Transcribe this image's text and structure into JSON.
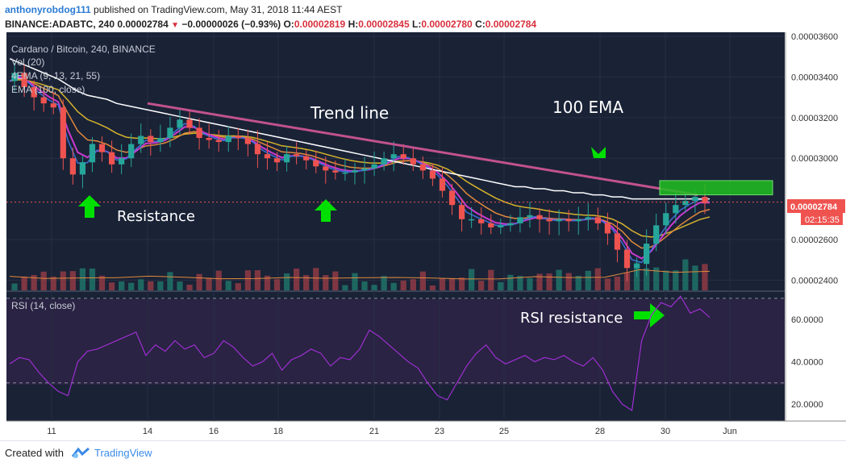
{
  "header": {
    "author": "anthonyrobdog111",
    "published": " published on TradingView.com, May 31, 2018 11:44 AEST",
    "symbol": "BINANCE:ADABTC, 240",
    "last": "0.00002784",
    "change": "−0.00000026 (−0.93%)",
    "o_label": "O:",
    "o": "0.00002819",
    "h_label": "H:",
    "h": "0.00002845",
    "l_label": "L:",
    "l": "0.00002780",
    "c_label": "C:",
    "c": "0.00002784"
  },
  "legend": {
    "title": "Cardano / Bitcoin, 240, BINANCE",
    "vol": "Vol (20)",
    "ema4": "4EMA (9, 13, 21, 55)",
    "ema100": "EMA (100, close)",
    "rsi": "RSI (14, close)"
  },
  "annotations": {
    "trend_line": "Trend line",
    "ema_100": "100 EMA",
    "resistance": "Resistance",
    "rsi_resistance": "RSI resistance"
  },
  "price_axis": {
    "labels": [
      "0.00003600",
      "0.00003400",
      "0.00003200",
      "0.00003000",
      "0.00002600",
      "0.00002400"
    ],
    "last_price_label": "0.00002784",
    "countdown": "02:15:35"
  },
  "rsi_axis": {
    "labels": [
      "60.0000",
      "40.0000",
      "20.0000"
    ]
  },
  "time_axis": {
    "labels": [
      "11",
      "14",
      "16",
      "18",
      "21",
      "23",
      "25",
      "28",
      "30",
      "Jun"
    ]
  },
  "footer": {
    "created": "Created with",
    "brand": "TradingView"
  },
  "colors": {
    "up": "#26a69a",
    "down": "#ef5350",
    "ema100": "#ffffff",
    "trend": "#c2528f",
    "ema9": "#3b6fd6",
    "ema13": "#c83ad0",
    "ema21": "#e08a3c",
    "ema55": "#d4b32c",
    "rsi_line": "#9c2fd1",
    "arrow": "#00e000",
    "box": "#20c020"
  },
  "chart_data": {
    "type": "candlestick",
    "title": "Cardano / Bitcoin, 240, BINANCE",
    "x_labels": [
      "11",
      "14",
      "16",
      "18",
      "21",
      "23",
      "25",
      "28",
      "30",
      "Jun"
    ],
    "ylim": [
      2.35e-05,
      3.62e-05
    ],
    "rsi_ylim": [
      12,
      73
    ],
    "price_path": [
      3.38e-05,
      3.42e-05,
      3.35e-05,
      3.3e-05,
      3.27e-05,
      3.25e-05,
      3e-05,
      2.92e-05,
      2.98e-05,
      3.07e-05,
      3.03e-05,
      2.97e-05,
      3e-05,
      3.07e-05,
      3.11e-05,
      3.08e-05,
      3.1e-05,
      3.15e-05,
      3.19e-05,
      3.15e-05,
      3.1e-05,
      3.09e-05,
      3.08e-05,
      3.11e-05,
      3.1e-05,
      3.07e-05,
      3.02e-05,
      3e-05,
      2.98e-05,
      3.02e-05,
      3.01e-05,
      2.99e-05,
      2.96e-05,
      2.94e-05,
      2.93e-05,
      2.93e-05,
      2.94e-05,
      2.95e-05,
      2.97e-05,
      3e-05,
      3.02e-05,
      3e-05,
      2.97e-05,
      2.94e-05,
      2.9e-05,
      2.84e-05,
      2.77e-05,
      2.7e-05,
      2.7e-05,
      2.68e-05,
      2.66e-05,
      2.67e-05,
      2.68e-05,
      2.71e-05,
      2.72e-05,
      2.7e-05,
      2.69e-05,
      2.7e-05,
      2.69e-05,
      2.7e-05,
      2.71e-05,
      2.68e-05,
      2.63e-05,
      2.55e-05,
      2.46e-05,
      2.48e-05,
      2.58e-05,
      2.67e-05,
      2.73e-05,
      2.77e-05,
      2.79e-05,
      2.81e-05,
      2.78e-05
    ],
    "ema100": [
      3.49e-05,
      3.47e-05,
      3.45e-05,
      3.43e-05,
      3.41e-05,
      3.39e-05,
      3.36e-05,
      3.33e-05,
      3.31e-05,
      3.3e-05,
      3.29e-05,
      3.27e-05,
      3.26e-05,
      3.25e-05,
      3.24e-05,
      3.23e-05,
      3.22e-05,
      3.21e-05,
      3.2e-05,
      3.19e-05,
      3.18e-05,
      3.17e-05,
      3.16e-05,
      3.15e-05,
      3.14e-05,
      3.13e-05,
      3.12e-05,
      3.11e-05,
      3.1e-05,
      3.09e-05,
      3.08e-05,
      3.07e-05,
      3.06e-05,
      3.05e-05,
      3.04e-05,
      3.03e-05,
      3.02e-05,
      3.01e-05,
      3e-05,
      2.99e-05,
      2.98e-05,
      2.97e-05,
      2.96e-05,
      2.95e-05,
      2.94e-05,
      2.93e-05,
      2.92e-05,
      2.91e-05,
      2.9e-05,
      2.89e-05,
      2.88e-05,
      2.87e-05,
      2.86e-05,
      2.86e-05,
      2.85e-05,
      2.85e-05,
      2.84e-05,
      2.84e-05,
      2.83e-05,
      2.83e-05,
      2.82e-05,
      2.82e-05,
      2.81e-05,
      2.81e-05,
      2.8e-05,
      2.8e-05,
      2.8e-05,
      2.8e-05,
      2.8e-05,
      2.8e-05,
      2.8e-05,
      2.8e-05,
      2.8e-05
    ],
    "trend_line": {
      "from": [
        "14",
        3.27e-05
      ],
      "to": [
        "30",
        2.82e-05
      ]
    },
    "rsi": [
      39,
      42,
      41,
      35,
      30,
      26,
      24,
      40,
      45,
      46,
      48,
      50,
      52,
      54,
      43,
      48,
      45,
      50,
      46,
      48,
      42,
      44,
      50,
      47,
      42,
      38,
      40,
      44,
      36,
      41,
      43,
      46,
      44,
      38,
      42,
      41,
      46,
      55,
      52,
      48,
      44,
      40,
      37,
      30,
      24,
      22,
      30,
      38,
      44,
      48,
      42,
      39,
      41,
      43,
      40,
      42,
      41,
      43,
      40,
      38,
      42,
      36,
      26,
      20,
      17,
      50,
      62,
      68,
      66,
      71,
      63,
      65,
      61
    ],
    "rsi_levels": [
      70,
      30
    ]
  }
}
